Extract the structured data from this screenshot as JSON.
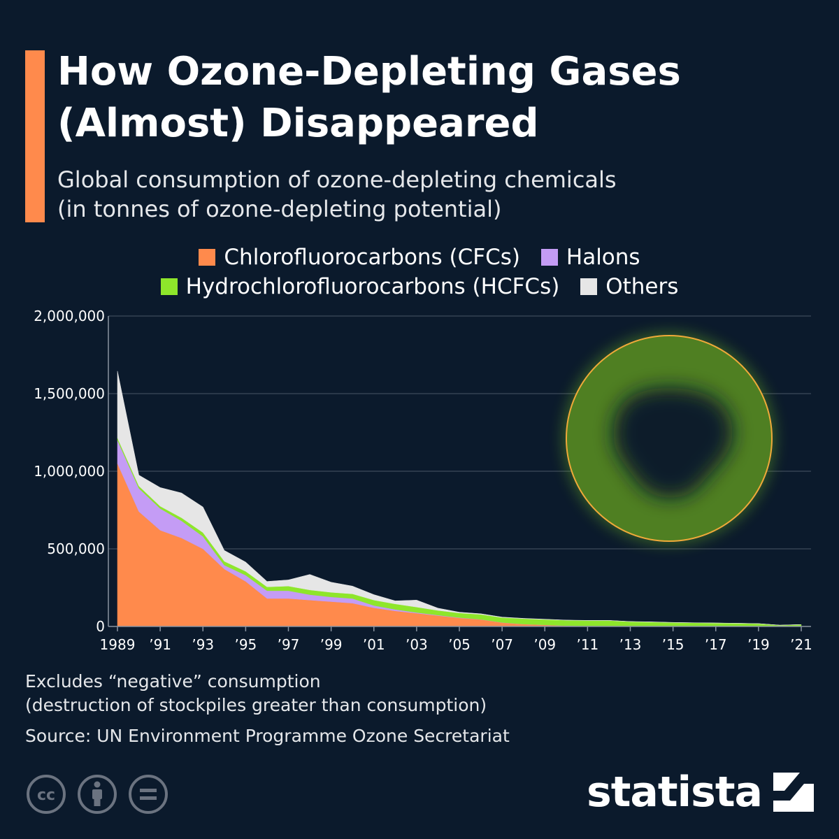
{
  "header": {
    "title_line1": "How Ozone-Depleting Gases",
    "title_line2": "(Almost) Disappeared",
    "subtitle_line1": "Global consumption of ozone-depleting chemicals",
    "subtitle_line2": "(in tonnes of ozone-depleting potential)"
  },
  "legend": {
    "items": [
      {
        "label": "Chlorofluorocarbons (CFCs)",
        "color": "#ff8a4c"
      },
      {
        "label": "Halons",
        "color": "#c49cf5"
      },
      {
        "label": "Hydrochlorofluorocarbons (HCFCs)",
        "color": "#8ee62b"
      },
      {
        "label": "Others",
        "color": "#e6e6e6"
      }
    ]
  },
  "chart_data": {
    "type": "area",
    "stacked": true,
    "ylim": [
      0,
      2000000
    ],
    "y_ticks": [
      "2,000,000",
      "1,500,000",
      "1,000,000",
      "500,000",
      "0"
    ],
    "y_tick_values": [
      2000000,
      1500000,
      1000000,
      500000,
      0
    ],
    "x_ticks": [
      "1989",
      "’91",
      "’93",
      "’95",
      "’97",
      "’99",
      "’01",
      "’03",
      "’05",
      "’07",
      "’09",
      "’11",
      "’13",
      "’15",
      "’17",
      "’19",
      "’21"
    ],
    "x_tick_years": [
      1989,
      1991,
      1993,
      1995,
      1997,
      1999,
      2001,
      2003,
      2005,
      2007,
      2009,
      2011,
      2013,
      2015,
      2017,
      2019,
      2021
    ],
    "x": [
      1989,
      1990,
      1991,
      1992,
      1993,
      1994,
      1995,
      1996,
      1997,
      1998,
      1999,
      2000,
      2001,
      2002,
      2003,
      2004,
      2005,
      2006,
      2007,
      2008,
      2009,
      2010,
      2011,
      2012,
      2013,
      2014,
      2015,
      2016,
      2017,
      2018,
      2019,
      2020,
      2021
    ],
    "grid": true,
    "legend_position": "top",
    "series": [
      {
        "name": "Chlorofluorocarbons (CFCs)",
        "color": "#ff8a4c",
        "values": [
          1050000,
          740000,
          620000,
          570000,
          500000,
          370000,
          290000,
          180000,
          180000,
          170000,
          160000,
          150000,
          120000,
          100000,
          85000,
          70000,
          55000,
          45000,
          25000,
          15000,
          10000,
          5000,
          3000,
          2000,
          1000,
          500,
          300,
          200,
          100,
          100,
          100,
          100,
          100
        ]
      },
      {
        "name": "Halons",
        "color": "#c49cf5",
        "values": [
          150000,
          150000,
          140000,
          110000,
          80000,
          25000,
          40000,
          50000,
          50000,
          35000,
          30000,
          30000,
          15000,
          10000,
          5000,
          3000,
          2000,
          1000,
          500,
          300,
          200,
          100,
          100,
          100,
          100,
          100,
          100,
          100,
          100,
          100,
          100,
          100,
          100
        ]
      },
      {
        "name": "Hydrochlorofluorocarbons (HCFCs)",
        "color": "#8ee62b",
        "values": [
          15000,
          15000,
          15000,
          20000,
          25000,
          25000,
          25000,
          25000,
          30000,
          30000,
          30000,
          30000,
          35000,
          35000,
          35000,
          30000,
          30000,
          32000,
          32000,
          35000,
          35000,
          35000,
          35000,
          36000,
          30000,
          28000,
          25000,
          23000,
          22000,
          20000,
          18000,
          8000,
          12000
        ]
      },
      {
        "name": "Others",
        "color": "#e6e6e6",
        "values": [
          430000,
          70000,
          120000,
          160000,
          165000,
          70000,
          60000,
          35000,
          40000,
          100000,
          65000,
          50000,
          35000,
          20000,
          45000,
          15000,
          5000,
          4000,
          3000,
          2000,
          1500,
          1000,
          1000,
          1000,
          1000,
          1000,
          800,
          600,
          500,
          500,
          400,
          300,
          300
        ]
      }
    ],
    "annotation": "ozone-hole-illustration"
  },
  "notes": {
    "line1": "Excludes “negative” consumption",
    "line2": "(destruction of stockpiles greater than consumption)",
    "source": "Source: UN Environment Programme Ozone Secretariat"
  },
  "branding": {
    "logo_text": "statista",
    "license_icons": [
      "cc-icon",
      "attribution-icon",
      "no-derivatives-icon"
    ]
  }
}
